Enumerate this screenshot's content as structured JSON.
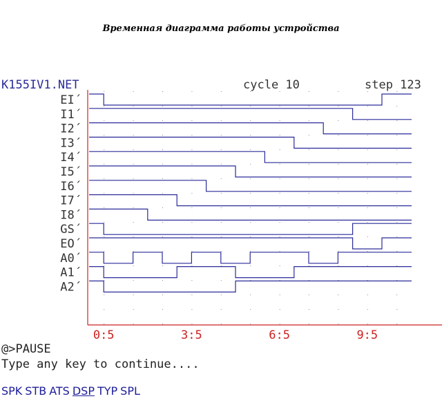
{
  "heading": "Временная диаграмма работы устройства",
  "header": {
    "filename": "K155IV1.NET",
    "cycle_label": "cycle 10",
    "step_label": "step 123"
  },
  "colors": {
    "signal": "#2a2a9a",
    "axis": "#cc2222",
    "dots": "#8a8a8a",
    "text": "#333333",
    "header": "#2a2a9a"
  },
  "time_labels": [
    "0:5",
    "3:5",
    "6:5",
    "9:5"
  ],
  "time_label_steps": [
    0,
    3,
    6,
    9
  ],
  "signals": [
    {
      "name": "EI´",
      "transitions": [
        0.5,
        10
      ]
    },
    {
      "name": "I1´",
      "transitions": [
        9
      ]
    },
    {
      "name": "I2´",
      "transitions": [
        8
      ]
    },
    {
      "name": "I3´",
      "transitions": [
        7
      ]
    },
    {
      "name": "I4´",
      "transitions": [
        6
      ]
    },
    {
      "name": "I5´",
      "transitions": [
        5
      ]
    },
    {
      "name": "I6´",
      "transitions": [
        4
      ]
    },
    {
      "name": "I7´",
      "transitions": [
        3
      ]
    },
    {
      "name": "I8´",
      "transitions": [
        2
      ]
    },
    {
      "name": "GS´",
      "transitions": [
        0.5,
        9
      ]
    },
    {
      "name": "EO´",
      "transitions": [
        9,
        10
      ]
    },
    {
      "name": "A0´",
      "transitions": [
        0.5,
        1.5,
        2.5,
        3.5,
        4.5,
        5.5,
        7.5,
        8.5
      ]
    },
    {
      "name": "A1´",
      "transitions": [
        0.5,
        3,
        5,
        7
      ]
    },
    {
      "name": "A2´",
      "transitions": [
        0.5,
        5
      ]
    }
  ],
  "signal_initial_levels": [
    1,
    1,
    1,
    1,
    1,
    1,
    1,
    1,
    1,
    1,
    1,
    1,
    1,
    1
  ],
  "console": {
    "line1": "@>PAUSE",
    "line2": "Type any key to continue...."
  },
  "menu": [
    {
      "label": "SPK",
      "active": false
    },
    {
      "label": "STB",
      "active": false
    },
    {
      "label": "ATS",
      "active": false
    },
    {
      "label": "DSP",
      "active": true
    },
    {
      "label": "TYP",
      "active": false
    },
    {
      "label": "SPL",
      "active": false
    }
  ]
}
